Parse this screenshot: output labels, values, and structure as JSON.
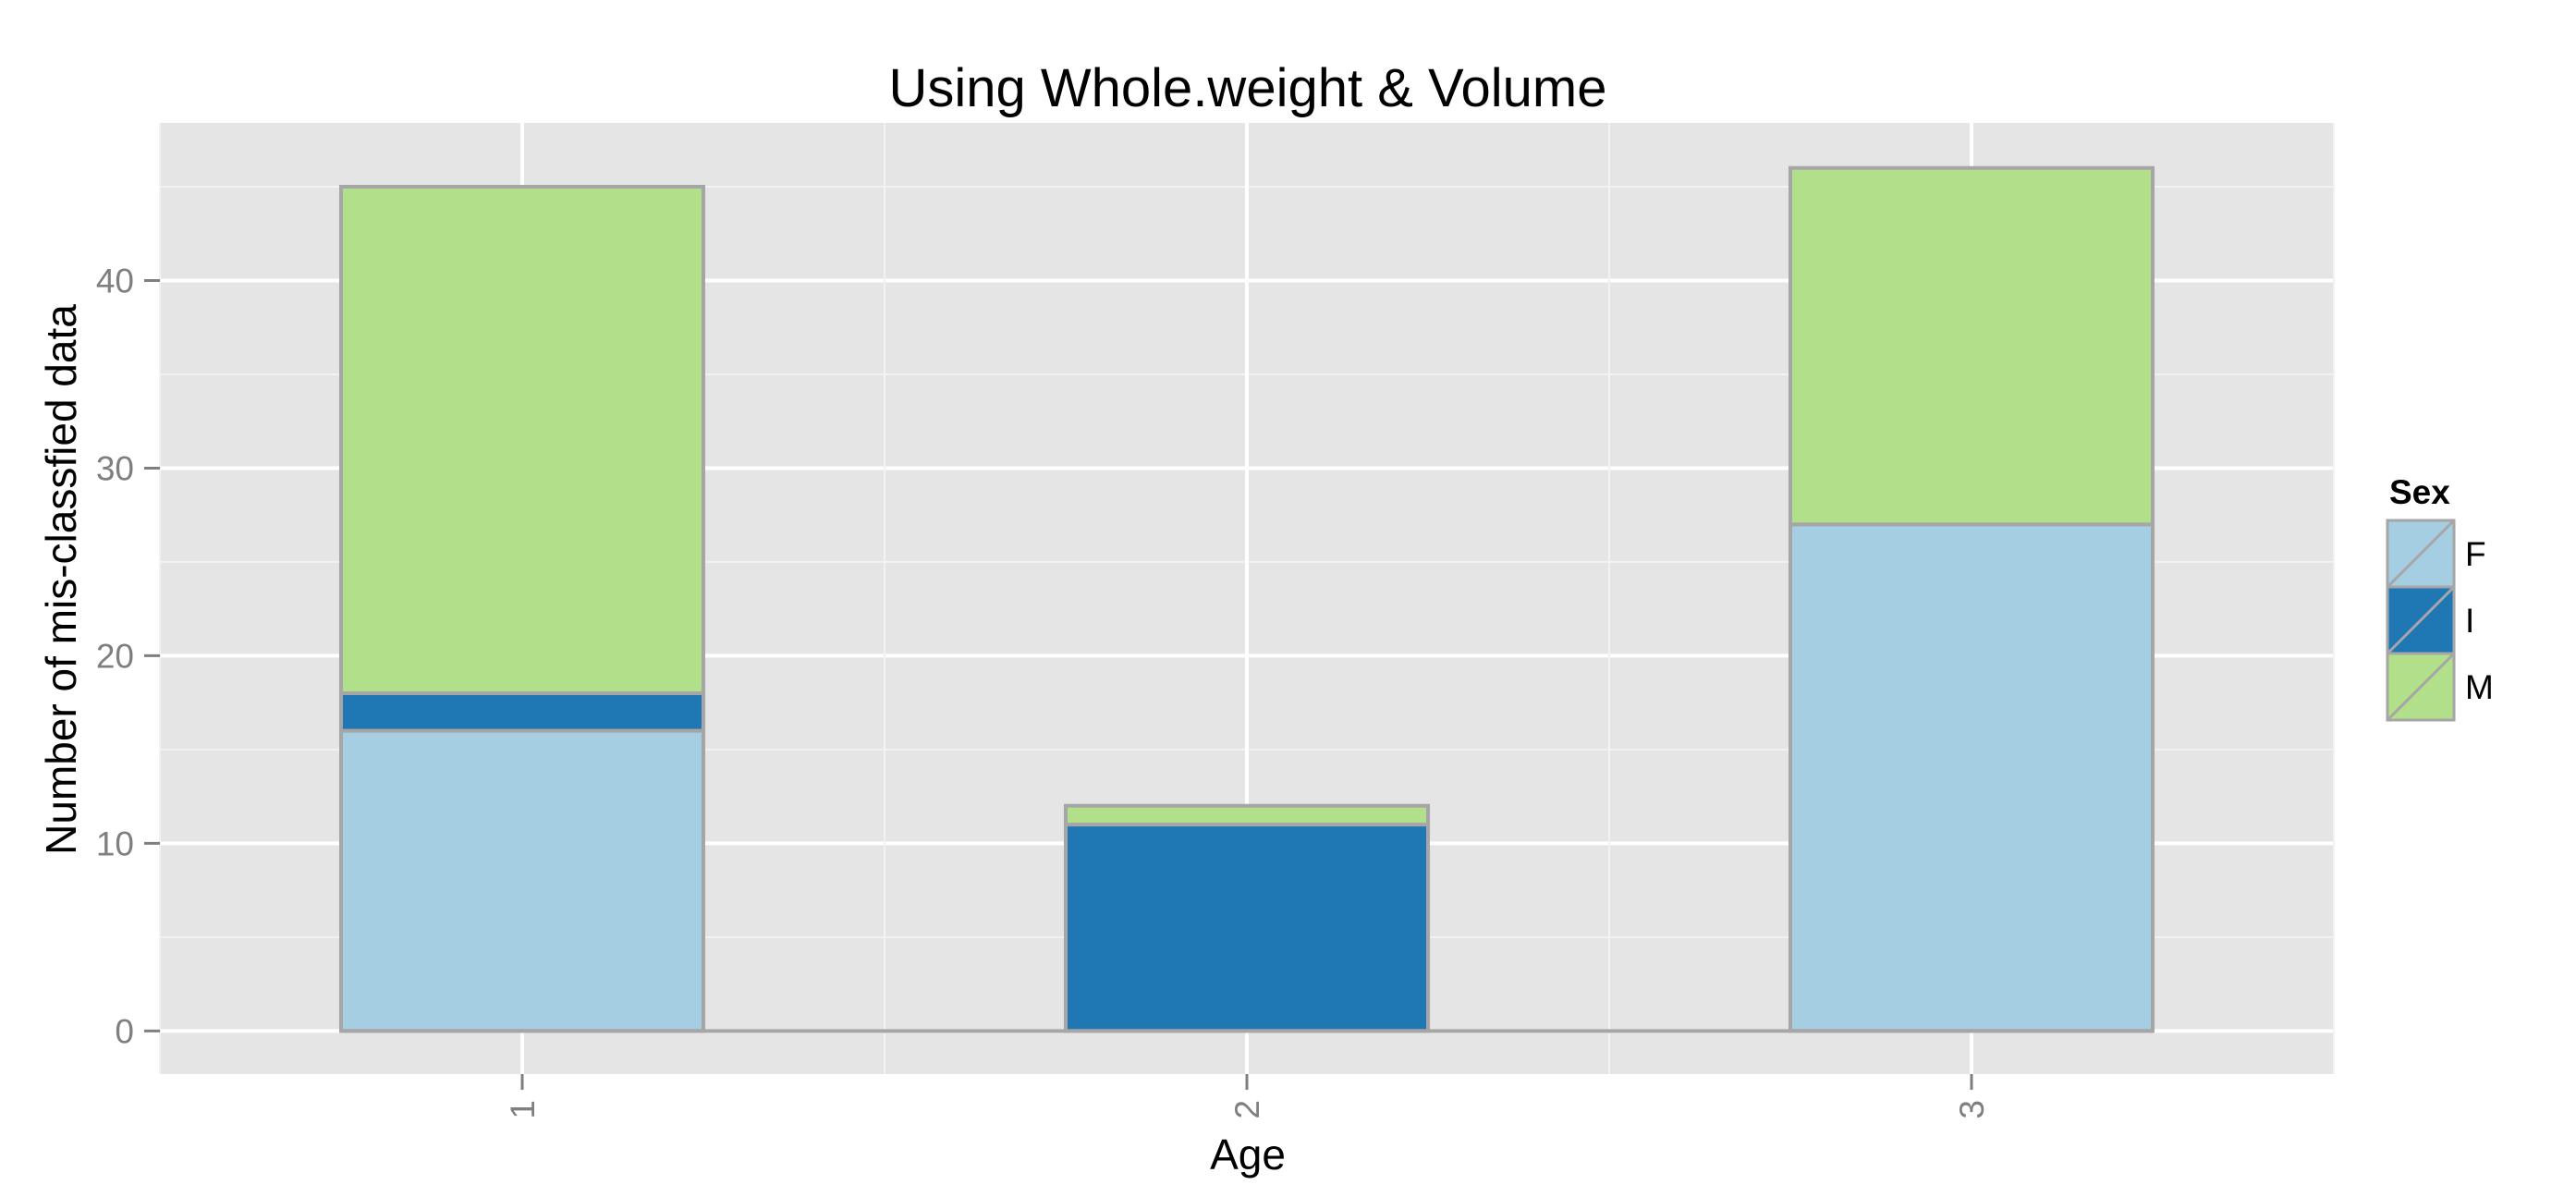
{
  "chart_data": {
    "type": "bar",
    "stacked": true,
    "title": "Using Whole.weight & Volume",
    "xlabel": "Age",
    "ylabel": "Number of mis-classfied data",
    "categories": [
      "1",
      "2",
      "3"
    ],
    "x_range": [
      0.5,
      3.5
    ],
    "ylim": [
      -2.3,
      48.4
    ],
    "y_ticks": [
      0,
      10,
      20,
      30,
      40
    ],
    "y_tick_labels": [
      "0",
      "10",
      "20",
      "30",
      "40"
    ],
    "grid": true,
    "legend": {
      "title": "Sex",
      "position": "right"
    },
    "series": [
      {
        "name": "F",
        "color": "#a6cee3",
        "values": [
          16,
          0,
          27
        ]
      },
      {
        "name": "I",
        "color": "#1f78b4",
        "values": [
          2,
          11,
          0
        ]
      },
      {
        "name": "M",
        "color": "#b2df8a",
        "values": [
          27,
          1,
          19
        ]
      }
    ]
  }
}
